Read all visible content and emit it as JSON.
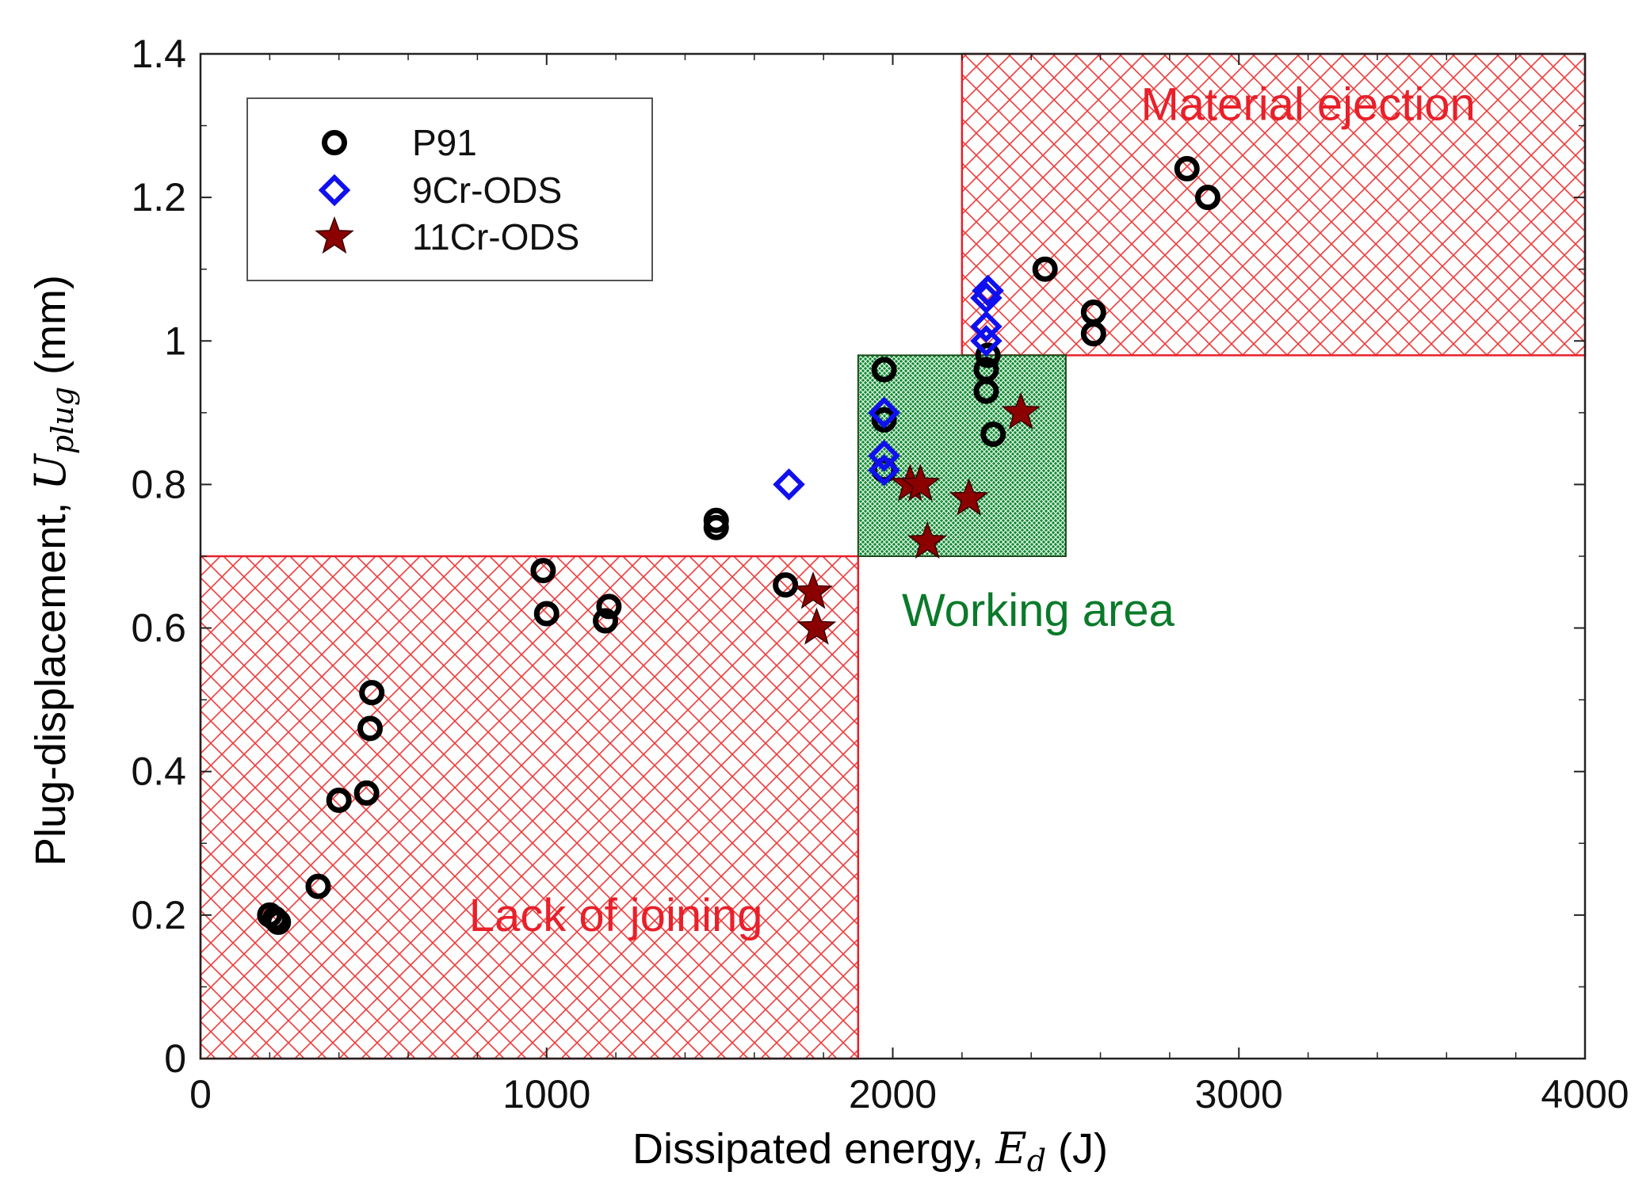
{
  "chart_data": {
    "type": "scatter",
    "title": "",
    "xlabel": "Dissipated energy, ",
    "xlabel_math": "E",
    "xlabel_sub": "d",
    "xlabel_unit": " (J)",
    "ylabel": "Plug-displacement, ",
    "ylabel_math": "U",
    "ylabel_sub": "plug",
    "ylabel_unit": " (mm)",
    "xlim": [
      0,
      4000
    ],
    "ylim": [
      0,
      1.4
    ],
    "x_ticks": [
      0,
      1000,
      2000,
      3000,
      4000
    ],
    "x_tick_labels": [
      "0",
      "1000",
      "2000",
      "3000",
      "4000"
    ],
    "y_ticks": [
      0,
      0.2,
      0.4,
      0.6,
      0.8,
      1,
      1.2,
      1.4
    ],
    "y_tick_labels": [
      "0",
      "0.2",
      "0.4",
      "0.6",
      "0.8",
      "1",
      "1.2",
      "1.4"
    ],
    "grid": false,
    "legend_position": "top-left",
    "series": [
      {
        "name": "P91",
        "marker": "circle",
        "color": "#000000",
        "points": [
          [
            200,
            0.2
          ],
          [
            215,
            0.195
          ],
          [
            225,
            0.19
          ],
          [
            340,
            0.24
          ],
          [
            400,
            0.36
          ],
          [
            480,
            0.37
          ],
          [
            490,
            0.46
          ],
          [
            495,
            0.51
          ],
          [
            990,
            0.68
          ],
          [
            1000,
            0.62
          ],
          [
            1170,
            0.61
          ],
          [
            1180,
            0.63
          ],
          [
            1490,
            0.74
          ],
          [
            1490,
            0.75
          ],
          [
            1690,
            0.66
          ],
          [
            1975,
            0.82
          ],
          [
            1975,
            0.89
          ],
          [
            1975,
            0.96
          ],
          [
            2270,
            0.93
          ],
          [
            2270,
            0.96
          ],
          [
            2275,
            0.98
          ],
          [
            2290,
            0.87
          ],
          [
            2440,
            1.1
          ],
          [
            2580,
            1.01
          ],
          [
            2580,
            1.04
          ],
          [
            2850,
            1.24
          ],
          [
            2910,
            1.2
          ]
        ]
      },
      {
        "name": "9Cr-ODS",
        "marker": "diamond",
        "color": "#1010ee",
        "points": [
          [
            1700,
            0.8
          ],
          [
            1975,
            0.82
          ],
          [
            1975,
            0.84
          ],
          [
            1975,
            0.9
          ],
          [
            2270,
            1.0
          ],
          [
            2270,
            1.02
          ],
          [
            2270,
            1.06
          ],
          [
            2275,
            1.07
          ]
        ]
      },
      {
        "name": "11Cr-ODS",
        "marker": "star",
        "color": "#8b0000",
        "points": [
          [
            1770,
            0.65
          ],
          [
            1780,
            0.6
          ],
          [
            2050,
            0.8
          ],
          [
            2080,
            0.8
          ],
          [
            2100,
            0.72
          ],
          [
            2220,
            0.78
          ],
          [
            2370,
            0.9
          ]
        ]
      }
    ],
    "regions": [
      {
        "name": "Lack of joining",
        "x": [
          0,
          1900
        ],
        "y": [
          0,
          0.7
        ],
        "color": "#e8202a",
        "pattern": "crosshatch",
        "label_at": [
          1200,
          0.2
        ]
      },
      {
        "name": "Material ejection",
        "x": [
          2200,
          4000
        ],
        "y": [
          0.98,
          1.4
        ],
        "color": "#e8202a",
        "pattern": "crosshatch",
        "label_at": [
          3200,
          1.33
        ]
      },
      {
        "name": "Working area",
        "x": [
          1900,
          2500
        ],
        "y": [
          0.7,
          0.98
        ],
        "color": "#0a7a2a",
        "pattern": "dense-crosshatch",
        "label_at": [
          2420,
          0.625
        ]
      }
    ],
    "region_label_colors": {
      "Lack of joining": "#e8202a",
      "Material ejection": "#e8202a",
      "Working area": "#0a7a2a"
    }
  }
}
